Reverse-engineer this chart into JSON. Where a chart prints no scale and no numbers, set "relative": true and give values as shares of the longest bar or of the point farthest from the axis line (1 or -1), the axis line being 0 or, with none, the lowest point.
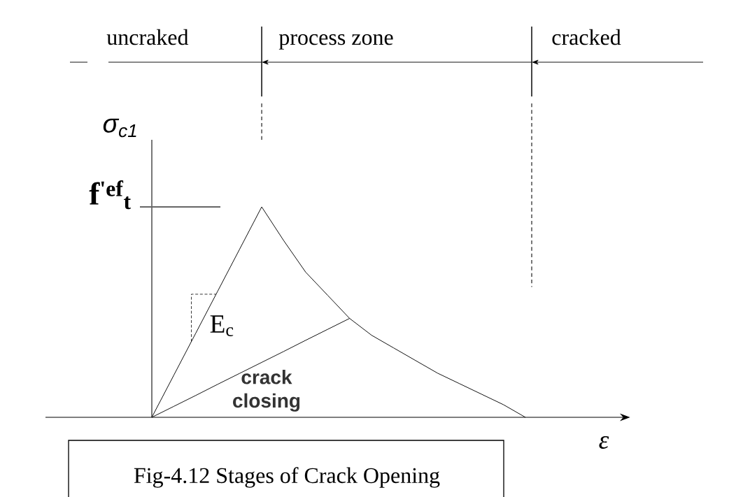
{
  "chart_data": {
    "type": "line",
    "relative": true,
    "xlabel": "ε",
    "ylabel": "σ$_{c1}$",
    "categories": [
      null,
      null,
      null,
      null,
      null,
      null,
      null,
      null,
      null,
      null,
      null,
      null,
      null,
      null,
      null,
      null,
      null,
      null
    ],
    "series": [
      {
        "color": "#000000",
        "values": [
          0,
          0.2,
          0.4,
          0.6,
          0.8,
          1,
          0.84,
          0.69,
          0.58,
          0.47,
          0.39,
          0.33,
          0.27,
          0.21,
          0.16,
          0.11,
          0.06,
          0
        ]
      },
      {
        "color": "#000000",
        "values": [
          0,
          0.052,
          0.104,
          0.157,
          0.209,
          0.261,
          0.313,
          0.366,
          0.418,
          0.47,
          null,
          null,
          null,
          null,
          null,
          null,
          null,
          null
        ]
      }
    ],
    "ref_lines": [
      {
        "axis": "y",
        "value": 1,
        "label": "f$^{'ef}$$_{t}$",
        "color": "#666666"
      }
    ],
    "annotations": [
      "uncraked",
      "process zone",
      "cracked",
      "E$_{c}$",
      "crack closing",
      "Fig-4.12 Stages of Crack Opening"
    ]
  }
}
